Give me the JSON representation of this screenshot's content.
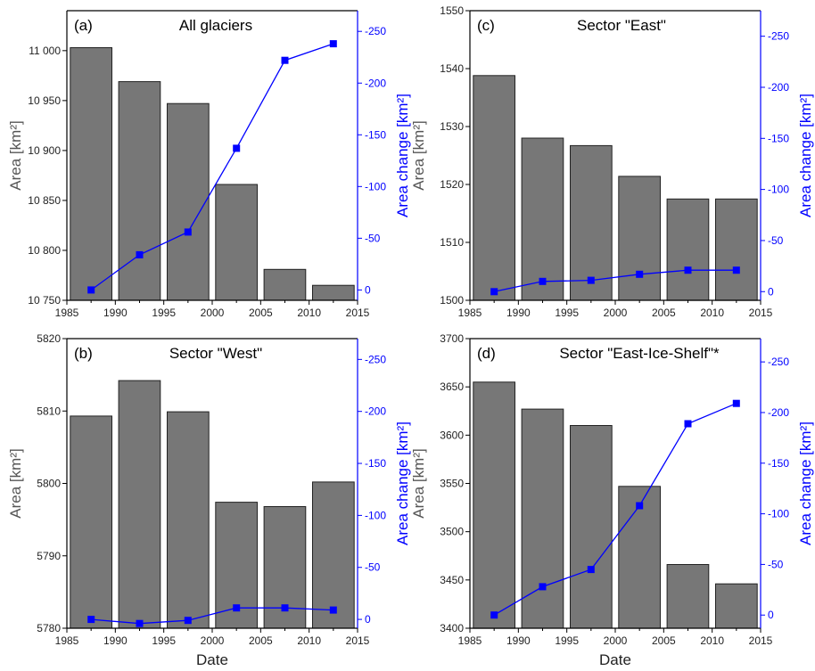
{
  "chart_data": [
    {
      "panel": "(a)",
      "title": "All glaciers",
      "type": "bar+line",
      "xlabel": "",
      "ylabel_left": "Area [km²]",
      "ylabel_right": "Area change [km²]",
      "xlim": [
        1985,
        2015
      ],
      "x_ticks": [
        "1985",
        "1990",
        "1995",
        "2000",
        "2005",
        "2010",
        "2015"
      ],
      "ylim_left": [
        10750,
        11040
      ],
      "y_ticks_left": [
        {
          "v": 10750,
          "label": "10 750"
        },
        {
          "v": 10800,
          "label": "10 800"
        },
        {
          "v": 10850,
          "label": "10 850"
        },
        {
          "v": 10900,
          "label": "10 900"
        },
        {
          "v": 10950,
          "label": "10 950"
        },
        {
          "v": 11000,
          "label": "11 000"
        }
      ],
      "ylim_right": [
        10,
        -270
      ],
      "y_ticks_right": [
        {
          "v": 0,
          "label": "0"
        },
        {
          "v": -50,
          "label": "-50"
        },
        {
          "v": -100,
          "label": "-100"
        },
        {
          "v": -150,
          "label": "-150"
        },
        {
          "v": -200,
          "label": "-200"
        },
        {
          "v": -250,
          "label": "-250"
        }
      ],
      "series": [
        {
          "kind": "bar",
          "axis": "left",
          "x": [
            1987.5,
            1992.5,
            1997.5,
            2002.5,
            2007.5,
            2012.5
          ],
          "values": [
            11003,
            10969,
            10947,
            10866,
            10781,
            10765
          ]
        },
        {
          "kind": "line",
          "axis": "right",
          "x": [
            1987.5,
            1992.5,
            1997.5,
            2002.5,
            2007.5,
            2012.5
          ],
          "values": [
            0,
            -34,
            -56,
            -137,
            -222,
            -238
          ]
        }
      ]
    },
    {
      "panel": "(c)",
      "title": "Sector \"East\"",
      "type": "bar+line",
      "xlabel": "",
      "ylabel_left": "Area [km²]",
      "ylabel_right": "Area change [km²]",
      "xlim": [
        1985,
        2015
      ],
      "x_ticks": [
        "1985",
        "1990",
        "1995",
        "2000",
        "2005",
        "2010",
        "2015"
      ],
      "ylim_left": [
        1500,
        1550
      ],
      "y_ticks_left": [
        {
          "v": 1500,
          "label": "1500"
        },
        {
          "v": 1510,
          "label": "1510"
        },
        {
          "v": 1520,
          "label": "1520"
        },
        {
          "v": 1530,
          "label": "1530"
        },
        {
          "v": 1540,
          "label": "1540"
        },
        {
          "v": 1550,
          "label": "1550"
        }
      ],
      "ylim_right": [
        8.5,
        -275
      ],
      "y_ticks_right": [
        {
          "v": 0,
          "label": "0"
        },
        {
          "v": -50,
          "label": "-50"
        },
        {
          "v": -100,
          "label": "-100"
        },
        {
          "v": -150,
          "label": "-150"
        },
        {
          "v": -200,
          "label": "-200"
        },
        {
          "v": -250,
          "label": "-250"
        }
      ],
      "series": [
        {
          "kind": "bar",
          "axis": "left",
          "x": [
            1987.5,
            1992.5,
            1997.5,
            2002.5,
            2007.5,
            2012.5
          ],
          "values": [
            1538.8,
            1528.0,
            1526.7,
            1521.4,
            1517.5,
            1517.5
          ]
        },
        {
          "kind": "line",
          "axis": "right",
          "x": [
            1987.5,
            1992.5,
            1997.5,
            2002.5,
            2007.5,
            2012.5
          ],
          "values": [
            0,
            -10,
            -11,
            -17,
            -21,
            -21
          ]
        }
      ]
    },
    {
      "panel": "(b)",
      "title": "Sector \"West\"",
      "type": "bar+line",
      "xlabel": "Date",
      "ylabel_left": "Area [km²]",
      "ylabel_right": "Area change [km²]",
      "xlim": [
        1985,
        2015
      ],
      "x_ticks": [
        "1985",
        "1990",
        "1995",
        "2000",
        "2005",
        "2010",
        "2015"
      ],
      "ylim_left": [
        5780,
        5820
      ],
      "y_ticks_left": [
        {
          "v": 5780,
          "label": "5780"
        },
        {
          "v": 5790,
          "label": "5790"
        },
        {
          "v": 5800,
          "label": "5800"
        },
        {
          "v": 5810,
          "label": "5810"
        },
        {
          "v": 5820,
          "label": "5820"
        }
      ],
      "ylim_right": [
        8.5,
        -270
      ],
      "y_ticks_right": [
        {
          "v": 0,
          "label": "0"
        },
        {
          "v": -50,
          "label": "-50"
        },
        {
          "v": -100,
          "label": "-100"
        },
        {
          "v": -150,
          "label": "-150"
        },
        {
          "v": -200,
          "label": "-200"
        },
        {
          "v": -250,
          "label": "-250"
        }
      ],
      "series": [
        {
          "kind": "bar",
          "axis": "left",
          "x": [
            1987.5,
            1992.5,
            1997.5,
            2002.5,
            2007.5,
            2012.5
          ],
          "values": [
            5809.3,
            5814.2,
            5809.9,
            5797.4,
            5796.8,
            5800.2
          ]
        },
        {
          "kind": "line",
          "axis": "right",
          "x": [
            1987.5,
            1992.5,
            1997.5,
            2002.5,
            2007.5,
            2012.5
          ],
          "values": [
            0,
            4,
            1,
            -11,
            -11,
            -9
          ]
        }
      ]
    },
    {
      "panel": "(d)",
      "title": "Sector \"East-Ice-Shelf\"*",
      "type": "bar+line",
      "xlabel": "Date",
      "ylabel_left": "Area [km²]",
      "ylabel_right": "Area change [km²]",
      "xlim": [
        1985,
        2015
      ],
      "x_ticks": [
        "1985",
        "1990",
        "1995",
        "2000",
        "2005",
        "2010",
        "2015"
      ],
      "ylim_left": [
        3400,
        3700
      ],
      "y_ticks_left": [
        {
          "v": 3400,
          "label": "3400"
        },
        {
          "v": 3450,
          "label": "3450"
        },
        {
          "v": 3500,
          "label": "3500"
        },
        {
          "v": 3550,
          "label": "3550"
        },
        {
          "v": 3600,
          "label": "3600"
        },
        {
          "v": 3650,
          "label": "3650"
        },
        {
          "v": 3700,
          "label": "3700"
        }
      ],
      "ylim_right": [
        13,
        -273
      ],
      "y_ticks_right": [
        {
          "v": 0,
          "label": "0"
        },
        {
          "v": -50,
          "label": "-50"
        },
        {
          "v": -100,
          "label": "-100"
        },
        {
          "v": -150,
          "label": "-150"
        },
        {
          "v": -200,
          "label": "-200"
        },
        {
          "v": -250,
          "label": "-250"
        }
      ],
      "series": [
        {
          "kind": "bar",
          "axis": "left",
          "x": [
            1987.5,
            1992.5,
            1997.5,
            2002.5,
            2007.5,
            2012.5
          ],
          "values": [
            3655,
            3627,
            3610,
            3547,
            3466,
            3446
          ]
        },
        {
          "kind": "line",
          "axis": "right",
          "x": [
            1987.5,
            1992.5,
            1997.5,
            2002.5,
            2007.5,
            2012.5
          ],
          "values": [
            0,
            -28,
            -45,
            -108,
            -189,
            -209
          ]
        }
      ]
    }
  ],
  "colors": {
    "bar_fill": "#777777",
    "bar_stroke": "#222222",
    "line": "#0000ff",
    "right_axis": "#0000ff",
    "left_label": "#555555"
  }
}
